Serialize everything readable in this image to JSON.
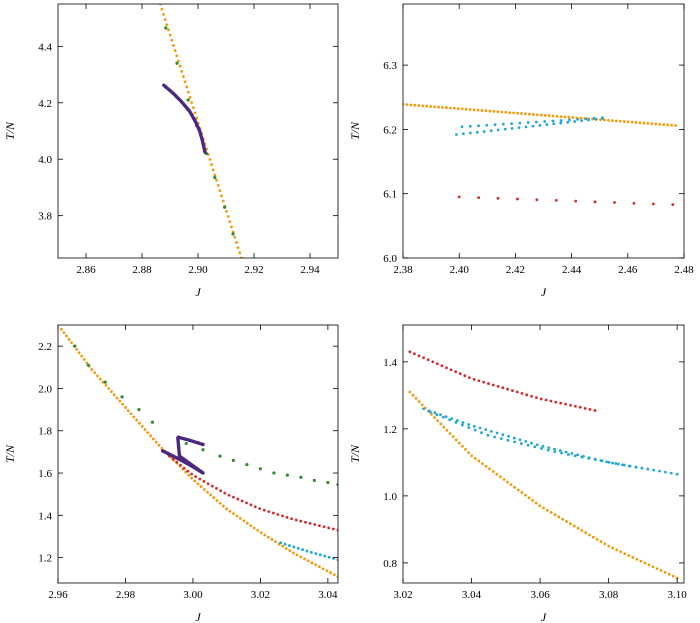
{
  "colors": {
    "orange": "#f39a0c",
    "green": "#2e8b2e",
    "purple": "#4a2880",
    "blue": "#22a6d8",
    "red": "#d22b2b"
  },
  "chart_data": [
    {
      "type": "scatter",
      "xlabel": "J",
      "ylabel": "T/N",
      "xlim": [
        2.85,
        2.95
      ],
      "ylim": [
        3.65,
        4.55
      ],
      "xticks": [
        "2.86",
        "2.88",
        "2.90",
        "2.92",
        "2.94"
      ],
      "yticks": [
        "3.8",
        "4.0",
        "4.2",
        "4.4"
      ],
      "grid": false,
      "series": [
        {
          "color": "orange",
          "kind": "line",
          "x": [
            2.8865,
            2.9155
          ],
          "y": [
            4.55,
            3.65
          ],
          "n": 50
        },
        {
          "color": "green",
          "kind": "points",
          "x": [
            2.8885,
            2.8925,
            2.8965,
            2.8995,
            2.903,
            2.906,
            2.9095,
            2.9125
          ],
          "y": [
            4.465,
            4.34,
            4.21,
            4.12,
            4.02,
            3.935,
            3.83,
            3.735
          ]
        },
        {
          "color": "purple",
          "kind": "curve",
          "x": [
            2.8878,
            2.891,
            2.894,
            2.897,
            2.899,
            2.9006,
            2.9016,
            2.9025
          ],
          "y": [
            4.262,
            4.235,
            4.205,
            4.17,
            4.135,
            4.1,
            4.065,
            4.025
          ],
          "n": 55
        }
      ]
    },
    {
      "type": "scatter",
      "xlabel": "J",
      "ylabel": "T/N",
      "xlim": [
        2.38,
        2.48
      ],
      "ylim": [
        6.0,
        6.395
      ],
      "xticks": [
        "2.38",
        "2.40",
        "2.42",
        "2.44",
        "2.46",
        "2.48"
      ],
      "yticks": [
        "6.0",
        "6.1",
        "6.2",
        "6.3"
      ],
      "grid": false,
      "series": [
        {
          "color": "orange",
          "kind": "line",
          "x": [
            2.38,
            2.477
          ],
          "y": [
            6.239,
            6.206
          ],
          "n": 70
        },
        {
          "color": "blue",
          "kind": "line",
          "x": [
            2.399,
            2.451
          ],
          "y": [
            6.192,
            6.217
          ],
          "n": 22
        },
        {
          "color": "blue",
          "kind": "line",
          "x": [
            2.401,
            2.451
          ],
          "y": [
            6.204,
            6.218
          ],
          "n": 18
        },
        {
          "color": "red",
          "kind": "line",
          "x": [
            2.4,
            2.476
          ],
          "y": [
            6.095,
            6.083
          ],
          "n": 12
        }
      ]
    },
    {
      "type": "scatter",
      "xlabel": "J",
      "ylabel": "T/N",
      "xlim": [
        2.96,
        3.043
      ],
      "ylim": [
        1.08,
        2.3
      ],
      "xticks": [
        "2.96",
        "2.98",
        "3.00",
        "3.02",
        "3.04"
      ],
      "yticks": [
        "1.2",
        "1.4",
        "1.6",
        "1.8",
        "2.0",
        "2.2"
      ],
      "grid": false,
      "series": [
        {
          "color": "orange",
          "kind": "curve",
          "x": [
            2.961,
            2.97,
            2.98,
            2.99,
            3.0,
            3.01,
            3.02,
            3.03,
            3.043
          ],
          "y": [
            2.28,
            2.09,
            1.91,
            1.73,
            1.57,
            1.43,
            1.32,
            1.22,
            1.11
          ],
          "n": 90
        },
        {
          "color": "green",
          "kind": "points",
          "x": [
            2.965,
            2.969,
            2.974,
            2.979,
            2.984,
            2.988,
            2.998,
            3.003,
            3.008,
            3.012,
            3.016,
            3.02,
            3.024,
            3.028,
            3.032,
            3.036,
            3.04,
            3.043
          ],
          "y": [
            2.2,
            2.11,
            2.03,
            1.96,
            1.9,
            1.84,
            1.74,
            1.71,
            1.68,
            1.66,
            1.64,
            1.62,
            1.6,
            1.59,
            1.58,
            1.565,
            1.555,
            1.545
          ]
        },
        {
          "color": "red",
          "kind": "curve",
          "x": [
            2.993,
            3.0,
            3.01,
            3.02,
            3.03,
            3.043
          ],
          "y": [
            1.68,
            1.59,
            1.5,
            1.43,
            1.38,
            1.33
          ],
          "n": 40
        },
        {
          "color": "blue",
          "kind": "curve",
          "x": [
            3.026,
            3.034,
            3.043
          ],
          "y": [
            1.27,
            1.23,
            1.19
          ],
          "n": 14
        },
        {
          "color": "purple",
          "kind": "curve",
          "x": [
            2.991,
            2.996,
            3.0,
            3.003,
            2.996,
            2.9955,
            2.999,
            3.003
          ],
          "y": [
            1.705,
            1.665,
            1.63,
            1.6,
            1.68,
            1.77,
            1.755,
            1.735
          ],
          "n": 90
        }
      ]
    },
    {
      "type": "scatter",
      "xlabel": "J",
      "ylabel": "T/N",
      "xlim": [
        3.02,
        3.102
      ],
      "ylim": [
        0.74,
        1.51
      ],
      "xticks": [
        "3.02",
        "3.04",
        "3.06",
        "3.08",
        "3.10"
      ],
      "yticks": [
        "0.8",
        "1.0",
        "1.2",
        "1.4"
      ],
      "grid": false,
      "series": [
        {
          "color": "orange",
          "kind": "curve",
          "x": [
            3.022,
            3.04,
            3.06,
            3.08,
            3.1
          ],
          "y": [
            1.31,
            1.12,
            0.97,
            0.85,
            0.755
          ],
          "n": 75
        },
        {
          "color": "red",
          "kind": "curve",
          "x": [
            3.022,
            3.04,
            3.06,
            3.076
          ],
          "y": [
            1.43,
            1.35,
            1.29,
            1.255
          ],
          "n": 40
        },
        {
          "color": "blue",
          "kind": "curve",
          "x": [
            3.026,
            3.04,
            3.06,
            3.08,
            3.1
          ],
          "y": [
            1.26,
            1.21,
            1.15,
            1.1,
            1.065
          ],
          "n": 45
        },
        {
          "color": "blue",
          "kind": "curve",
          "x": [
            3.028,
            3.045,
            3.065,
            3.088
          ],
          "y": [
            1.25,
            1.18,
            1.13,
            1.085
          ],
          "n": 32
        }
      ]
    }
  ]
}
